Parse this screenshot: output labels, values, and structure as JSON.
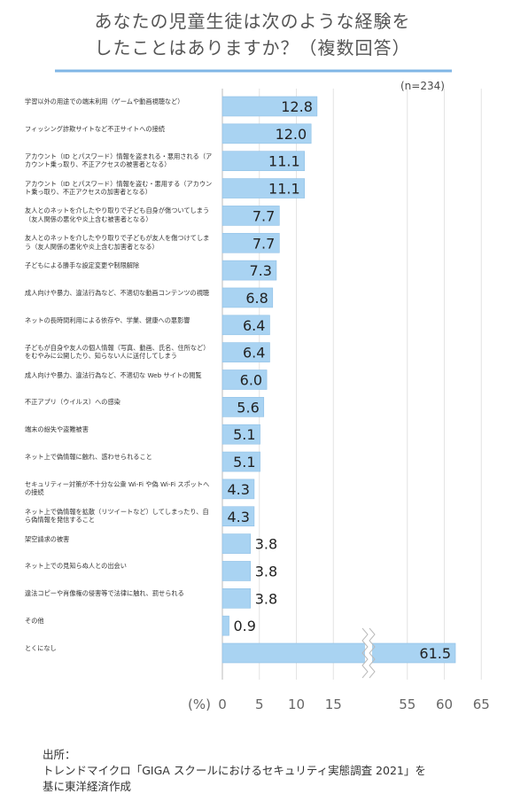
{
  "chart_data": {
    "type": "bar",
    "orientation": "horizontal",
    "title": [
      "あなたの児童生徒は次のような経験を",
      "したことはありますか？（複数回答）"
    ],
    "note": "(n=234)",
    "xlabel": "(%)",
    "categories": [
      "学習以外の用途での端末利用（ゲームや動画視聴など）",
      "フィッシング詐欺サイトなど不正サイトへの接続",
      "アカウント（ID とパスワード）情報を盗まれる・悪用される（アカウント乗っ取り、不正アクセスの被害者となる）",
      "アカウント（ID とパスワード）情報を盗む・悪用する（アカウント乗っ取り、不正アクセスの加害者となる）",
      "友人とのネットを介したやり取りで子ども自身が傷ついてしまう（友人関係の悪化や炎上含む被害者となる）",
      "友人とのネットを介したやり取りで子どもが友人を傷つけてしまう（友人関係の悪化や炎上含む加害者となる）",
      "子どもによる勝手な設定変更や制限解除",
      "成人向けや暴力、違法行為など、不適切な動画コンテンツの視聴",
      "ネットの長時間利用による依存や、学業、健康への悪影響",
      "子どもが自身や友人の個人情報（写真、動画、氏名、住所など）をむやみに公開したり、知らない人に送付してしまう",
      "成人向けや暴力、違法行為など、不適切な Web サイトの閲覧",
      "不正アプリ（ウイルス）への感染",
      "端末の紛失や盗難被害",
      "ネット上で偽情報に触れ、惑わせられること",
      "セキュリティー対策が不十分な公衆 Wi-Fi や偽 Wi-Fi スポットへの接続",
      "ネット上で偽情報を拡散（リツイートなど）してしまったり、自ら偽情報を発信すること",
      "架空請求の被害",
      "ネット上での見知らぬ人との出会い",
      "違法コピーや肖像権の侵害等で法律に触れ、罰せられる",
      "その他",
      "とくになし"
    ],
    "values": [
      12.8,
      12,
      11.1,
      11.1,
      7.7,
      7.7,
      7.3,
      6.8,
      6.4,
      6.4,
      6,
      5.6,
      5.1,
      5.1,
      4.3,
      4.3,
      3.8,
      3.8,
      3.8,
      0.9,
      61.5
    ],
    "value_labels": [
      "12.8",
      "12.0",
      "11.1",
      "11.1",
      "7.7",
      "7.7",
      "7.3",
      "6.8",
      "6.4",
      "6.4",
      "6.0",
      "5.6",
      "5.1",
      "5.1",
      "4.3",
      "4.3",
      "3.8",
      "3.8",
      "3.8",
      "0.9",
      "61.5"
    ],
    "color": "#a9d3f2",
    "xlim": [
      0,
      65
    ],
    "axis_break": [
      20,
      50
    ],
    "xticks": [
      0,
      5,
      10,
      15,
      55,
      60,
      65
    ],
    "grid": true,
    "source": [
      "出所：",
      "トレンドマイクロ「GIGA スクールにおけるセキュリティ実態調査 2021」を",
      "基に東洋経済作成"
    ]
  }
}
